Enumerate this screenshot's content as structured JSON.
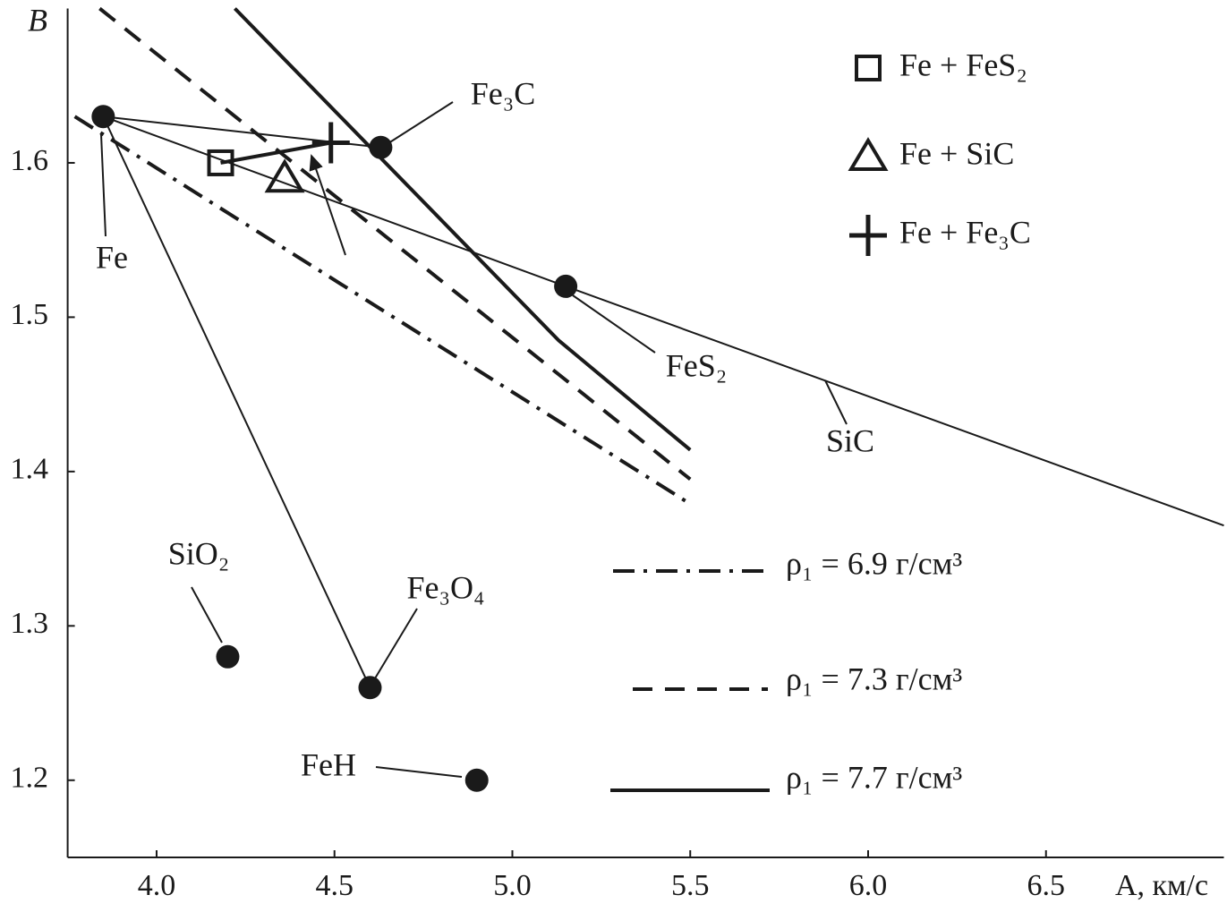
{
  "chart_data": {
    "type": "scatter",
    "x_label": "A, км/с",
    "y_label": "B",
    "xlim": [
      3.75,
      7.0
    ],
    "ylim": [
      1.15,
      1.7
    ],
    "xticks": [
      {
        "value": 4,
        "label": "4.0"
      },
      4.5,
      {
        "value": 5,
        "label": "5.0"
      },
      5.5,
      {
        "value": 6,
        "label": "6.0"
      },
      6.5
    ],
    "yticks": [
      1.2,
      1.3,
      1.4,
      1.5,
      1.6
    ],
    "color": "#1a1a1a",
    "materials": [
      {
        "name": "Fe",
        "x": 3.85,
        "y": 1.63
      },
      {
        "name": "Fe₃C",
        "x": 4.63,
        "y": 1.61
      },
      {
        "name": "FeS₂",
        "x": 5.15,
        "y": 1.52
      },
      {
        "name": "SiO₂",
        "x": 4.2,
        "y": 1.28
      },
      {
        "name": "Fe₃O₄",
        "x": 4.6,
        "y": 1.26
      },
      {
        "name": "FeH",
        "x": 4.9,
        "y": 1.2
      }
    ],
    "lines": [
      {
        "name": "SiC",
        "x": [
          3.85,
          5.15,
          7.0
        ],
        "y": [
          1.63,
          1.52,
          1.365
        ]
      },
      {
        "x": [
          3.85,
          4.63
        ],
        "y": [
          1.63,
          1.61
        ]
      },
      {
        "x": [
          3.85,
          4.6
        ],
        "y": [
          1.63,
          1.26
        ]
      }
    ],
    "mixture_line": {
      "x": [
        4.18,
        4.49
      ],
      "y": [
        1.6,
        1.613
      ]
    },
    "mixtures": [
      {
        "name": "Fe + FeS₂",
        "marker": "square",
        "x": 4.18,
        "y": 1.6
      },
      {
        "name": "Fe + SiC",
        "marker": "triangle",
        "x": 4.36,
        "y": 1.59
      },
      {
        "name": "Fe + Fe₃C",
        "marker": "cross",
        "x": 4.49,
        "y": 1.613
      }
    ],
    "density_lines": [
      {
        "name": "ρ₁ = 6.9 г/см³",
        "style": "dashdot",
        "x": [
          3.77,
          5.5
        ],
        "y": [
          1.63,
          1.379
        ]
      },
      {
        "name": "ρ₁ = 7.3 г/см³",
        "style": "dashed",
        "x": [
          3.84,
          5.5
        ],
        "y": [
          1.7,
          1.395
        ]
      },
      {
        "name": "ρ₁ = 7.7 г/см³",
        "style": "solid",
        "x": [
          4.22,
          5.13,
          5.5
        ],
        "y": [
          1.7,
          1.485,
          1.414
        ]
      }
    ]
  }
}
